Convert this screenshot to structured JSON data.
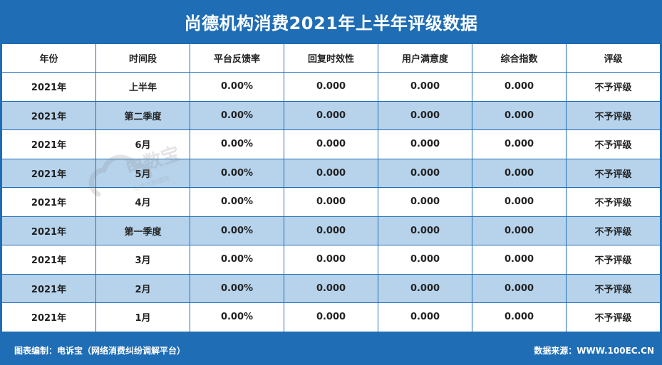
{
  "title": "尚德机构消费2021年上半年评级数据",
  "columns": [
    "年份",
    "时间段",
    "平台反馈率",
    "回复时效性",
    "用户满意度",
    "综合指数",
    "评级"
  ],
  "rows": [
    [
      "2021年",
      "上半年",
      "0.00%",
      "0.000",
      "0.000",
      "0.000",
      "不予评级"
    ],
    [
      "2021年",
      "第二季度",
      "0.00%",
      "0.000",
      "0.000",
      "0.000",
      "不予评级"
    ],
    [
      "2021年",
      "6月",
      "0.00%",
      "0.000",
      "0.000",
      "0.000",
      "不予评级"
    ],
    [
      "2021年",
      "5月",
      "0.00%",
      "0.000",
      "0.000",
      "0.000",
      "不予评级"
    ],
    [
      "2021年",
      "4月",
      "0.00%",
      "0.000",
      "0.000",
      "0.000",
      "不予评级"
    ],
    [
      "2021年",
      "第一季度",
      "0.00%",
      "0.000",
      "0.000",
      "0.000",
      "不予评级"
    ],
    [
      "2021年",
      "3月",
      "0.00%",
      "0.000",
      "0.000",
      "0.000",
      "不予评级"
    ],
    [
      "2021年",
      "2月",
      "0.00%",
      "0.000",
      "0.000",
      "0.000",
      "不予评级"
    ],
    [
      "2021年",
      "1月",
      "0.00%",
      "0.000",
      "0.000",
      "0.000",
      "不予评级"
    ]
  ],
  "footer": {
    "left": "图表编制：电诉宝（网络消费纠纷调解平台）",
    "right": "数据来源：WWW.100EC.CN"
  },
  "watermark": {
    "brand": "电数宝",
    "sub": "电商大数据库"
  },
  "colors": {
    "primary": "#1f6db5",
    "alt_row": "#b7d3ec"
  }
}
